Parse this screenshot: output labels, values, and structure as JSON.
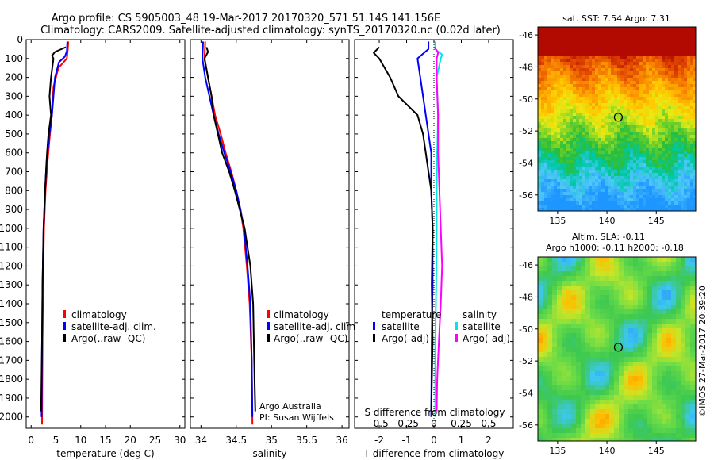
{
  "header": {
    "line1": "Argo profile: CS 5905003_48 19-Mar-2017 20170320_571 51.14S 141.156E",
    "line2": "Climatology: CARS2009. Satellite-adjusted climatology: synTS_20170320.nc (0.02d later)"
  },
  "credit": "©IMOS 27-Mar-2017 20:39:20",
  "chart_data": [
    {
      "type": "line",
      "id": "temperature",
      "xlabel": "temperature (deg C)",
      "ylabel": "",
      "xlim": [
        -1,
        31
      ],
      "ylim": [
        2060,
        0
      ],
      "xticks": [
        0,
        5,
        10,
        15,
        20,
        25,
        30
      ],
      "yticks": [
        0,
        100,
        200,
        300,
        400,
        500,
        600,
        700,
        800,
        900,
        1000,
        1100,
        1200,
        1300,
        1400,
        1500,
        1600,
        1700,
        1800,
        1900,
        2000
      ],
      "legend": [
        "climatology",
        "satellite-adj. clim.",
        "Argo(..raw -QC)"
      ],
      "series": [
        {
          "name": "climatology",
          "color": "#ff0000",
          "points": [
            [
              7.5,
              10
            ],
            [
              7.4,
              50
            ],
            [
              7.2,
              100
            ],
            [
              5.5,
              150
            ],
            [
              4.5,
              250
            ],
            [
              4.2,
              400
            ],
            [
              3.8,
              500
            ],
            [
              3.3,
              650
            ],
            [
              2.9,
              800
            ],
            [
              2.6,
              1000
            ],
            [
              2.4,
              1300
            ],
            [
              2.3,
              1600
            ],
            [
              2.2,
              2040
            ]
          ]
        },
        {
          "name": "satellite-adj. clim.",
          "color": "#0000ff",
          "points": [
            [
              7.3,
              10
            ],
            [
              7.2,
              60
            ],
            [
              6.8,
              90
            ],
            [
              5.6,
              120
            ],
            [
              4.8,
              200
            ],
            [
              4.2,
              400
            ],
            [
              3.7,
              500
            ],
            [
              3.1,
              650
            ],
            [
              2.8,
              800
            ],
            [
              2.5,
              1000
            ],
            [
              2.3,
              1300
            ],
            [
              2.2,
              1600
            ],
            [
              2.1,
              2000
            ]
          ]
        },
        {
          "name": "Argo(..raw -QC)",
          "color": "#000000",
          "points": [
            [
              7.0,
              40
            ],
            [
              4.8,
              65
            ],
            [
              4.2,
              85
            ],
            [
              4.5,
              100
            ],
            [
              4.0,
              200
            ],
            [
              3.7,
              300
            ],
            [
              4.0,
              400
            ],
            [
              3.5,
              500
            ],
            [
              3.2,
              600
            ],
            [
              2.8,
              800
            ],
            [
              2.5,
              1000
            ],
            [
              2.3,
              1300
            ],
            [
              2.2,
              1600
            ],
            [
              2.0,
              1970
            ]
          ]
        }
      ]
    },
    {
      "type": "line",
      "id": "salinity",
      "xlabel": "salinity",
      "ylabel": "",
      "xlim": [
        33.85,
        36.1
      ],
      "ylim": [
        2060,
        0
      ],
      "xticks": [
        34,
        34.5,
        35,
        35.5,
        36
      ],
      "legend": [
        "climatology",
        "satellite-adj. clim.",
        "Argo(..raw -QC)"
      ],
      "annotation": [
        "Argo Australia",
        "PI: Susan Wijffels"
      ],
      "series": [
        {
          "name": "climatology",
          "color": "#ff0000",
          "points": [
            [
              34.06,
              10
            ],
            [
              34.05,
              100
            ],
            [
              34.1,
              200
            ],
            [
              34.15,
              300
            ],
            [
              34.2,
              400
            ],
            [
              34.28,
              500
            ],
            [
              34.35,
              600
            ],
            [
              34.43,
              700
            ],
            [
              34.5,
              800
            ],
            [
              34.56,
              900
            ],
            [
              34.6,
              1000
            ],
            [
              34.65,
              1200
            ],
            [
              34.69,
              1400
            ],
            [
              34.72,
              1700
            ],
            [
              34.73,
              2040
            ]
          ]
        },
        {
          "name": "satellite-adj. clim.",
          "color": "#0000ff",
          "points": [
            [
              34.03,
              10
            ],
            [
              34.02,
              100
            ],
            [
              34.06,
              200
            ],
            [
              34.12,
              300
            ],
            [
              34.18,
              400
            ],
            [
              34.25,
              500
            ],
            [
              34.33,
              600
            ],
            [
              34.42,
              700
            ],
            [
              34.5,
              800
            ],
            [
              34.56,
              900
            ],
            [
              34.61,
              1000
            ],
            [
              34.66,
              1200
            ],
            [
              34.7,
              1400
            ],
            [
              34.72,
              1700
            ],
            [
              34.73,
              2000
            ]
          ]
        },
        {
          "name": "Argo(..raw -QC)",
          "color": "#000000",
          "points": [
            [
              34.08,
              40
            ],
            [
              34.1,
              65
            ],
            [
              34.05,
              100
            ],
            [
              34.1,
              200
            ],
            [
              34.15,
              300
            ],
            [
              34.18,
              400
            ],
            [
              34.24,
              500
            ],
            [
              34.3,
              600
            ],
            [
              34.4,
              700
            ],
            [
              34.48,
              800
            ],
            [
              34.55,
              900
            ],
            [
              34.62,
              1000
            ],
            [
              34.7,
              1200
            ],
            [
              34.74,
              1400
            ],
            [
              34.75,
              1600
            ],
            [
              34.76,
              1800
            ],
            [
              34.77,
              1970
            ]
          ]
        }
      ]
    },
    {
      "type": "line",
      "id": "difference",
      "xlabel": "T difference from climatology",
      "xlabel2": "S difference from climatology",
      "xlim": [
        -2.9,
        2.9
      ],
      "ylim": [
        2060,
        0
      ],
      "xticks": [
        -2,
        -1,
        0,
        1,
        2
      ],
      "sticks_labels": [
        "-0.5",
        "-0.25",
        "0",
        "0.25",
        "0.5"
      ],
      "legend_headers": [
        "temperature",
        "salinity"
      ],
      "legend": [
        "satellite",
        "Argo(-adj)",
        "satellite",
        "Argo(-adj)"
      ],
      "series": [
        {
          "name": "satellite",
          "group": "temperature",
          "color": "#0000ff",
          "points": [
            [
              -0.2,
              10
            ],
            [
              -0.2,
              50
            ],
            [
              -0.6,
              100
            ],
            [
              -0.5,
              200
            ],
            [
              -0.3,
              400
            ],
            [
              -0.1,
              600
            ],
            [
              -0.1,
              800
            ],
            [
              -0.05,
              1000
            ],
            [
              -0.05,
              1300
            ],
            [
              -0.08,
              1600
            ],
            [
              -0.1,
              2000
            ]
          ]
        },
        {
          "name": "Argo(-adj)",
          "group": "temperature",
          "color": "#000000",
          "points": [
            [
              -2.0,
              40
            ],
            [
              -2.2,
              70
            ],
            [
              -2.0,
              100
            ],
            [
              -1.6,
              200
            ],
            [
              -1.3,
              300
            ],
            [
              -0.6,
              400
            ],
            [
              -0.4,
              500
            ],
            [
              -0.3,
              600
            ],
            [
              -0.2,
              700
            ],
            [
              -0.1,
              800
            ],
            [
              -0.05,
              1000
            ],
            [
              -0.08,
              1300
            ],
            [
              -0.05,
              1600
            ],
            [
              -0.1,
              1970
            ]
          ]
        },
        {
          "name": "satellite",
          "group": "salinity",
          "color": "#00e5e5",
          "points": [
            [
              0.05,
              10
            ],
            [
              0.05,
              50
            ],
            [
              0.3,
              80
            ],
            [
              0.25,
              100
            ],
            [
              0.1,
              200
            ],
            [
              0.15,
              400
            ],
            [
              0.12,
              600
            ],
            [
              0.1,
              800
            ],
            [
              0.1,
              1000
            ],
            [
              0.08,
              1300
            ],
            [
              0.05,
              1600
            ],
            [
              0.05,
              2000
            ]
          ]
        },
        {
          "name": "Argo(-adj)",
          "group": "salinity",
          "color": "#ff00ff",
          "points": [
            [
              0.02,
              40
            ],
            [
              0.15,
              70
            ],
            [
              0.1,
              100
            ],
            [
              0.1,
              200
            ],
            [
              0.15,
              400
            ],
            [
              0.15,
              600
            ],
            [
              0.2,
              800
            ],
            [
              0.25,
              1000
            ],
            [
              0.3,
              1200
            ],
            [
              0.25,
              1400
            ],
            [
              0.18,
              1600
            ],
            [
              0.12,
              1800
            ],
            [
              0.1,
              1970
            ]
          ]
        }
      ]
    },
    {
      "type": "heatmap",
      "id": "sst-map",
      "title": "sat. SST: 7.54  Argo: 7.31",
      "xlim": [
        133,
        149
      ],
      "ylim": [
        -57,
        -45.5
      ],
      "xticks": [
        135,
        140,
        145
      ],
      "yticks": [
        -46,
        -48,
        -50,
        -52,
        -54,
        -56
      ],
      "marker": {
        "lon": 141.156,
        "lat": -51.14
      }
    },
    {
      "type": "heatmap",
      "id": "sla-map",
      "title1": "Altim. SLA: -0.11",
      "title2": "Argo h1000: -0.11  h2000: -0.18",
      "xlim": [
        133,
        149
      ],
      "ylim": [
        -57,
        -45.5
      ],
      "xticks": [
        135,
        140,
        145
      ],
      "yticks": [
        -46,
        -48,
        -50,
        -52,
        -54,
        -56
      ],
      "marker": {
        "lon": 141.156,
        "lat": -51.14
      }
    }
  ]
}
